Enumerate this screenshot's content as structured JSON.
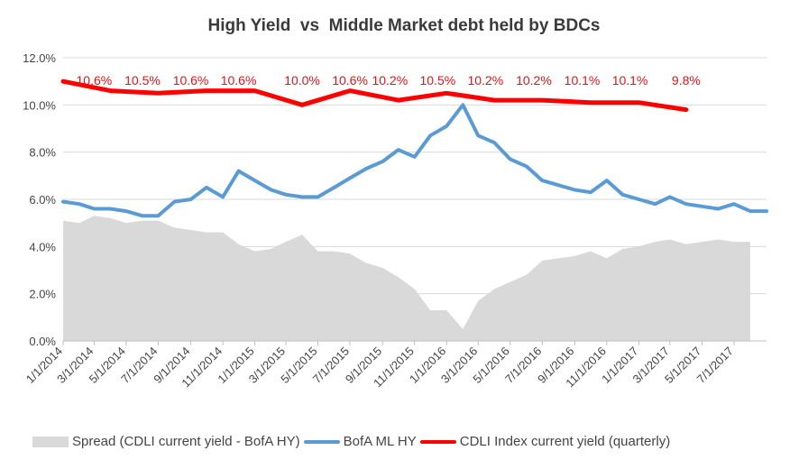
{
  "chart_data": {
    "type": "line",
    "title": "High Yield  vs  Middle Market debt held by BDCs",
    "xlabel": "",
    "ylabel": "",
    "ylim": [
      0,
      12
    ],
    "y_ticks": [
      "0.0%",
      "2.0%",
      "4.0%",
      "6.0%",
      "8.0%",
      "10.0%",
      "12.0%"
    ],
    "x_range": [
      "2014-01-01",
      "2017-09-01"
    ],
    "x_ticks": [
      "1/1/2014",
      "3/1/2014",
      "5/1/2014",
      "7/1/2014",
      "9/1/2014",
      "11/1/2014",
      "1/1/2015",
      "3/1/2015",
      "5/1/2015",
      "7/1/2015",
      "9/1/2015",
      "11/1/2015",
      "1/1/2016",
      "3/1/2016",
      "5/1/2016",
      "7/1/2016",
      "9/1/2016",
      "11/1/2016",
      "1/1/2017",
      "3/1/2017",
      "5/1/2017",
      "7/1/2017"
    ],
    "grid": "horizontal",
    "legend_position": "bottom",
    "series": [
      {
        "name": "Spread (CDLI current yield - BofA HY)",
        "kind": "area",
        "color": "#d9d9d9",
        "points": [
          [
            "2014-01-01",
            5.1
          ],
          [
            "2014-02-01",
            5.0
          ],
          [
            "2014-03-01",
            5.3
          ],
          [
            "2014-04-01",
            5.2
          ],
          [
            "2014-05-01",
            5.0
          ],
          [
            "2014-06-01",
            5.1
          ],
          [
            "2014-07-01",
            5.1
          ],
          [
            "2014-08-01",
            4.8
          ],
          [
            "2014-09-01",
            4.7
          ],
          [
            "2014-10-01",
            4.6
          ],
          [
            "2014-11-01",
            4.6
          ],
          [
            "2014-12-01",
            4.1
          ],
          [
            "2015-01-01",
            3.8
          ],
          [
            "2015-02-01",
            3.9
          ],
          [
            "2015-03-01",
            4.2
          ],
          [
            "2015-04-01",
            4.5
          ],
          [
            "2015-05-01",
            3.8
          ],
          [
            "2015-06-01",
            3.8
          ],
          [
            "2015-07-01",
            3.7
          ],
          [
            "2015-08-01",
            3.3
          ],
          [
            "2015-09-01",
            3.1
          ],
          [
            "2015-10-01",
            2.7
          ],
          [
            "2015-11-01",
            2.2
          ],
          [
            "2015-12-01",
            1.3
          ],
          [
            "2016-01-01",
            1.3
          ],
          [
            "2016-02-01",
            0.5
          ],
          [
            "2016-03-01",
            1.7
          ],
          [
            "2016-04-01",
            2.2
          ],
          [
            "2016-05-01",
            2.5
          ],
          [
            "2016-06-01",
            2.8
          ],
          [
            "2016-07-01",
            3.4
          ],
          [
            "2016-08-01",
            3.5
          ],
          [
            "2016-09-01",
            3.6
          ],
          [
            "2016-10-01",
            3.8
          ],
          [
            "2016-11-01",
            3.5
          ],
          [
            "2016-12-01",
            3.9
          ],
          [
            "2017-01-01",
            4.0
          ],
          [
            "2017-02-01",
            4.2
          ],
          [
            "2017-03-01",
            4.3
          ],
          [
            "2017-04-01",
            4.1
          ],
          [
            "2017-05-01",
            4.2
          ],
          [
            "2017-06-01",
            4.3
          ],
          [
            "2017-07-01",
            4.2
          ],
          [
            "2017-08-01",
            4.2
          ]
        ]
      },
      {
        "name": "BofA ML HY",
        "kind": "line",
        "color": "#5b9bd5",
        "points": [
          [
            "2014-01-01",
            5.9
          ],
          [
            "2014-02-01",
            5.8
          ],
          [
            "2014-03-01",
            5.6
          ],
          [
            "2014-04-01",
            5.6
          ],
          [
            "2014-05-01",
            5.5
          ],
          [
            "2014-06-01",
            5.3
          ],
          [
            "2014-07-01",
            5.3
          ],
          [
            "2014-08-01",
            5.9
          ],
          [
            "2014-09-01",
            6.0
          ],
          [
            "2014-10-01",
            6.5
          ],
          [
            "2014-11-01",
            6.1
          ],
          [
            "2014-12-01",
            7.2
          ],
          [
            "2015-01-01",
            6.8
          ],
          [
            "2015-02-01",
            6.4
          ],
          [
            "2015-03-01",
            6.2
          ],
          [
            "2015-04-01",
            6.1
          ],
          [
            "2015-05-01",
            6.1
          ],
          [
            "2015-06-01",
            6.5
          ],
          [
            "2015-07-01",
            6.9
          ],
          [
            "2015-08-01",
            7.3
          ],
          [
            "2015-09-01",
            7.6
          ],
          [
            "2015-10-01",
            8.1
          ],
          [
            "2015-11-01",
            7.8
          ],
          [
            "2015-12-01",
            8.7
          ],
          [
            "2016-01-01",
            9.1
          ],
          [
            "2016-02-01",
            10.0
          ],
          [
            "2016-03-01",
            8.7
          ],
          [
            "2016-04-01",
            8.4
          ],
          [
            "2016-05-01",
            7.7
          ],
          [
            "2016-06-01",
            7.4
          ],
          [
            "2016-07-01",
            6.8
          ],
          [
            "2016-08-01",
            6.6
          ],
          [
            "2016-09-01",
            6.4
          ],
          [
            "2016-10-01",
            6.3
          ],
          [
            "2016-11-01",
            6.8
          ],
          [
            "2016-12-01",
            6.2
          ],
          [
            "2017-01-01",
            6.0
          ],
          [
            "2017-02-01",
            5.8
          ],
          [
            "2017-03-01",
            6.1
          ],
          [
            "2017-04-01",
            5.8
          ],
          [
            "2017-05-01",
            5.7
          ],
          [
            "2017-06-01",
            5.6
          ],
          [
            "2017-07-01",
            5.8
          ],
          [
            "2017-08-01",
            5.5
          ],
          [
            "2017-09-01",
            5.5
          ]
        ]
      },
      {
        "name": "CDLI Index current yield (quarterly)",
        "kind": "line",
        "color": "#ff0000",
        "points": [
          [
            "2014-01-01",
            11.0
          ],
          [
            "2014-04-01",
            10.6
          ],
          [
            "2014-07-01",
            10.5
          ],
          [
            "2014-10-01",
            10.6
          ],
          [
            "2015-01-01",
            10.6
          ],
          [
            "2015-04-01",
            10.0
          ],
          [
            "2015-07-01",
            10.6
          ],
          [
            "2015-10-01",
            10.2
          ],
          [
            "2016-01-01",
            10.5
          ],
          [
            "2016-04-01",
            10.2
          ],
          [
            "2016-07-01",
            10.2
          ],
          [
            "2016-10-01",
            10.1
          ],
          [
            "2017-01-01",
            10.1
          ],
          [
            "2017-04-01",
            9.8
          ]
        ],
        "data_labels": [
          [
            "2014-03-01",
            "10.6%"
          ],
          [
            "2014-06-01",
            "10.5%"
          ],
          [
            "2014-09-01",
            "10.6%"
          ],
          [
            "2014-12-01",
            "10.6%"
          ],
          [
            "2015-04-01",
            "10.0%"
          ],
          [
            "2015-07-01",
            "10.6%"
          ],
          [
            "2015-09-15",
            "10.2%"
          ],
          [
            "2015-12-15",
            "10.5%"
          ],
          [
            "2016-03-15",
            "10.2%"
          ],
          [
            "2016-06-15",
            "10.2%"
          ],
          [
            "2016-09-15",
            "10.1%"
          ],
          [
            "2016-12-15",
            "10.1%"
          ],
          [
            "2017-04-01",
            "9.8%"
          ]
        ]
      }
    ]
  }
}
